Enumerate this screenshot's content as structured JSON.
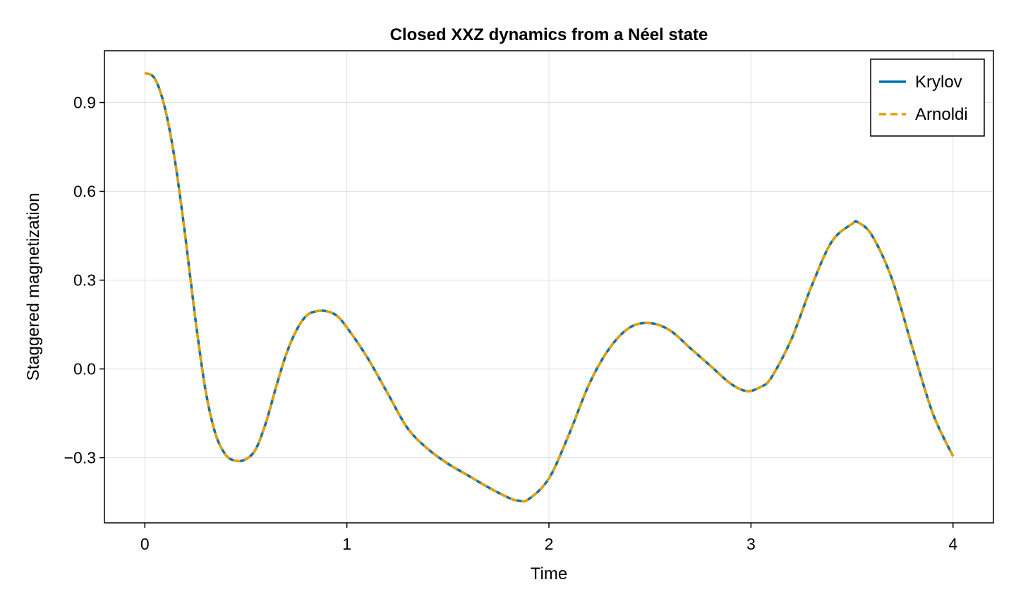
{
  "chart_data": {
    "type": "line",
    "title": "Closed XXZ dynamics from a Néel state",
    "xlabel": "Time",
    "ylabel": "Staggered magnetization",
    "xlim": [
      -0.2,
      4.2
    ],
    "ylim": [
      -0.52,
      1.075
    ],
    "xticks": [
      0,
      1,
      2,
      3,
      4
    ],
    "xtick_labels": [
      "0",
      "1",
      "2",
      "3",
      "4"
    ],
    "yticks": [
      -0.3,
      0.0,
      0.3,
      0.6,
      0.9
    ],
    "ytick_labels": [
      "−0.3",
      "0.0",
      "0.3",
      "0.6",
      "0.9"
    ],
    "grid": true,
    "legend": "top-right",
    "series": [
      {
        "name": "Krylov",
        "color": "#0072B2",
        "style": "solid",
        "x": [
          0.0,
          0.05,
          0.1,
          0.15,
          0.2,
          0.25,
          0.3,
          0.35,
          0.4,
          0.45,
          0.5,
          0.55,
          0.6,
          0.65,
          0.7,
          0.75,
          0.8,
          0.85,
          0.9,
          0.95,
          1.0,
          1.1,
          1.2,
          1.3,
          1.4,
          1.5,
          1.6,
          1.7,
          1.8,
          1.85,
          1.9,
          2.0,
          2.1,
          2.2,
          2.3,
          2.4,
          2.5,
          2.6,
          2.7,
          2.8,
          2.9,
          2.98,
          3.05,
          3.1,
          3.2,
          3.3,
          3.4,
          3.5,
          3.53,
          3.6,
          3.7,
          3.8,
          3.9,
          4.0
        ],
        "y": [
          1.0,
          0.98,
          0.88,
          0.7,
          0.45,
          0.17,
          -0.07,
          -0.22,
          -0.29,
          -0.31,
          -0.305,
          -0.27,
          -0.18,
          -0.06,
          0.05,
          0.13,
          0.18,
          0.195,
          0.195,
          0.18,
          0.14,
          0.04,
          -0.08,
          -0.2,
          -0.27,
          -0.32,
          -0.36,
          -0.4,
          -0.435,
          -0.445,
          -0.44,
          -0.37,
          -0.22,
          -0.05,
          0.07,
          0.14,
          0.155,
          0.13,
          0.07,
          0.01,
          -0.05,
          -0.075,
          -0.06,
          -0.03,
          0.1,
          0.28,
          0.43,
          0.49,
          0.495,
          0.45,
          0.3,
          0.07,
          -0.15,
          -0.295
        ]
      },
      {
        "name": "Arnoldi",
        "color": "#E69F00",
        "style": "dashed",
        "x": [
          0.0,
          0.05,
          0.1,
          0.15,
          0.2,
          0.25,
          0.3,
          0.35,
          0.4,
          0.45,
          0.5,
          0.55,
          0.6,
          0.65,
          0.7,
          0.75,
          0.8,
          0.85,
          0.9,
          0.95,
          1.0,
          1.1,
          1.2,
          1.3,
          1.4,
          1.5,
          1.6,
          1.7,
          1.8,
          1.85,
          1.9,
          2.0,
          2.1,
          2.2,
          2.3,
          2.4,
          2.5,
          2.6,
          2.7,
          2.8,
          2.9,
          2.98,
          3.05,
          3.1,
          3.2,
          3.3,
          3.4,
          3.5,
          3.53,
          3.6,
          3.7,
          3.8,
          3.9,
          4.0
        ],
        "y": [
          1.0,
          0.98,
          0.88,
          0.7,
          0.45,
          0.17,
          -0.07,
          -0.22,
          -0.29,
          -0.31,
          -0.305,
          -0.27,
          -0.18,
          -0.06,
          0.05,
          0.13,
          0.18,
          0.195,
          0.195,
          0.18,
          0.14,
          0.04,
          -0.08,
          -0.2,
          -0.27,
          -0.32,
          -0.36,
          -0.4,
          -0.435,
          -0.445,
          -0.44,
          -0.37,
          -0.22,
          -0.05,
          0.07,
          0.14,
          0.155,
          0.13,
          0.07,
          0.01,
          -0.05,
          -0.075,
          -0.06,
          -0.03,
          0.1,
          0.28,
          0.43,
          0.49,
          0.495,
          0.45,
          0.3,
          0.07,
          -0.15,
          -0.295
        ]
      }
    ]
  }
}
